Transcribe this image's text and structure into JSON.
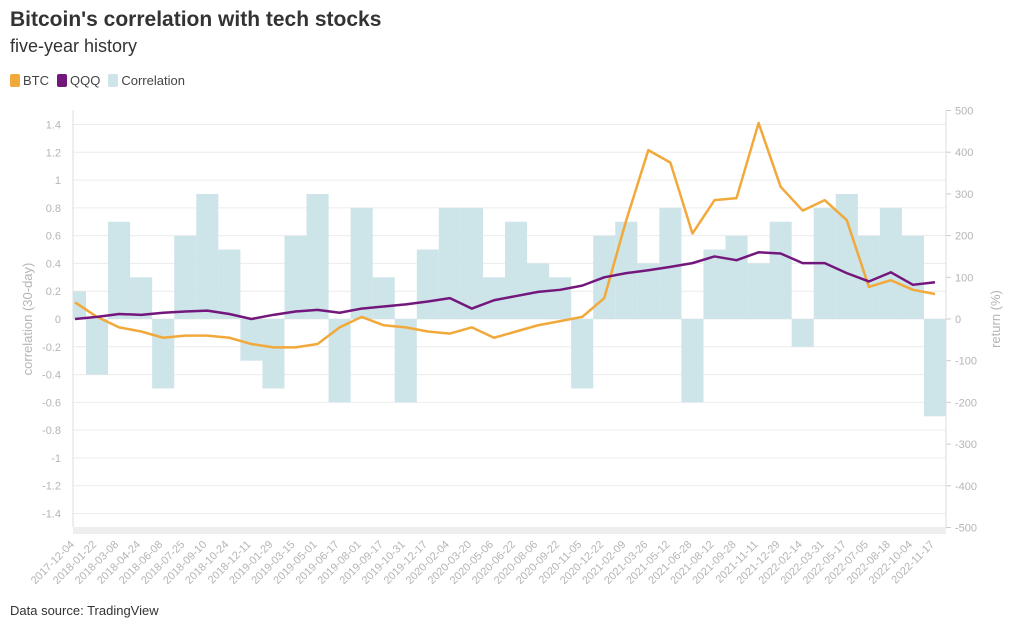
{
  "title": "Bitcoin's correlation with tech stocks",
  "subtitle": "five-year history",
  "source": "Data source: TradingView",
  "chart_data": {
    "type": "line",
    "title": "Bitcoin's correlation with tech stocks",
    "subtitle": "five-year history",
    "ylabel_left": "correlation (30-day)",
    "ylabel_right": "return (%)",
    "ylim_left": [
      -1.4,
      1.4
    ],
    "ylim_right": [
      -500,
      500
    ],
    "yticks_left": [
      "1.4",
      "1.2",
      "1",
      "0.8",
      "0.6",
      "0.4",
      "0.2",
      "0",
      "-0.2",
      "-0.4",
      "-0.6",
      "-0.8",
      "-1",
      "-1.2",
      "-1.4"
    ],
    "yticks_right": [
      "500",
      "400",
      "300",
      "200",
      "100",
      "0",
      "-100",
      "-200",
      "-300",
      "-400",
      "-500"
    ],
    "grid": true,
    "legend_placement": "top-left",
    "x": [
      "2017-12-04",
      "2018-01-22",
      "2018-03-08",
      "2018-04-24",
      "2018-06-08",
      "2018-07-25",
      "2018-09-10",
      "2018-10-24",
      "2018-12-11",
      "2019-01-29",
      "2019-03-15",
      "2019-05-01",
      "2019-06-17",
      "2019-08-01",
      "2019-09-17",
      "2019-10-31",
      "2019-12-17",
      "2020-02-04",
      "2020-03-20",
      "2020-05-06",
      "2020-06-22",
      "2020-08-06",
      "2020-09-22",
      "2020-11-05",
      "2020-12-22",
      "2021-02-09",
      "2021-03-26",
      "2021-05-12",
      "2021-06-28",
      "2021-08-12",
      "2021-09-28",
      "2021-11-11",
      "2021-12-29",
      "2022-02-14",
      "2022-03-31",
      "2022-05-17",
      "2022-07-05",
      "2022-08-18",
      "2022-10-04",
      "2022-11-17"
    ],
    "series": [
      {
        "name": "BTC",
        "axis": "right",
        "kind": "line",
        "color": "#f2a93b",
        "values": [
          40,
          5,
          -20,
          -30,
          -45,
          -40,
          -40,
          -45,
          -60,
          -68,
          -68,
          -60,
          -20,
          5,
          -15,
          -20,
          -30,
          -35,
          -20,
          -45,
          -30,
          -15,
          -5,
          5,
          50,
          237,
          405,
          375,
          205,
          285,
          290,
          470,
          317,
          260,
          285,
          237,
          77,
          93,
          70,
          60
        ]
      },
      {
        "name": "QQQ",
        "axis": "right",
        "kind": "line",
        "color": "#73177d",
        "values": [
          0,
          5,
          12,
          10,
          15,
          18,
          20,
          12,
          0,
          10,
          18,
          22,
          15,
          25,
          30,
          35,
          42,
          50,
          25,
          45,
          55,
          65,
          70,
          80,
          100,
          110,
          117,
          125,
          134,
          150,
          141,
          160,
          157,
          134,
          134,
          110,
          90,
          112,
          82,
          88
        ]
      },
      {
        "name": "Correlation",
        "axis": "left",
        "kind": "area",
        "color": "#cde4e8",
        "values": [
          0.2,
          -0.4,
          0.7,
          0.3,
          -0.5,
          0.6,
          0.9,
          0.5,
          -0.3,
          -0.5,
          0.6,
          0.9,
          -0.6,
          0.8,
          0.3,
          -0.6,
          0.5,
          0.8,
          0.8,
          0.3,
          0.7,
          0.4,
          0.3,
          -0.5,
          0.6,
          0.7,
          0.4,
          0.8,
          -0.6,
          0.5,
          0.6,
          0.4,
          0.7,
          -0.2,
          0.8,
          0.9,
          0.6,
          0.8,
          0.6,
          -0.7
        ]
      }
    ]
  }
}
